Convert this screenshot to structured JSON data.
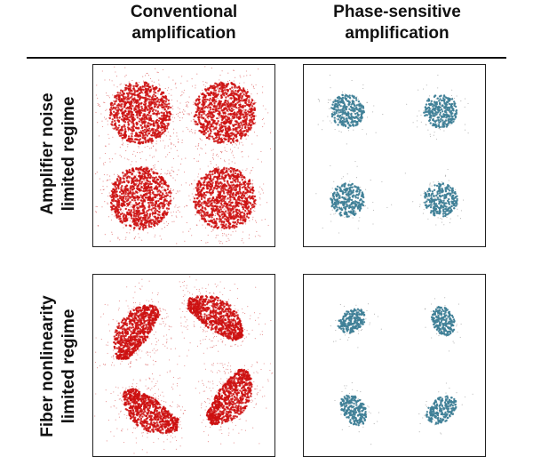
{
  "columns": [
    {
      "id": "conv",
      "line1": "Conventional",
      "line2": "amplification"
    },
    {
      "id": "phase",
      "line1": "Phase-sensitive",
      "line2": "amplification"
    }
  ],
  "rows": [
    {
      "id": "amp",
      "line1": "Amplifier noise",
      "line2": "limited regime"
    },
    {
      "id": "fib",
      "line1": "Fiber nonlinearity",
      "line2": "limited regime"
    }
  ],
  "colors": {
    "conventional": "#cc1111",
    "phase_sensitive": "#3f7f97",
    "haze": "#6b6b6b",
    "border": "#222222",
    "text": "#111111"
  }
}
